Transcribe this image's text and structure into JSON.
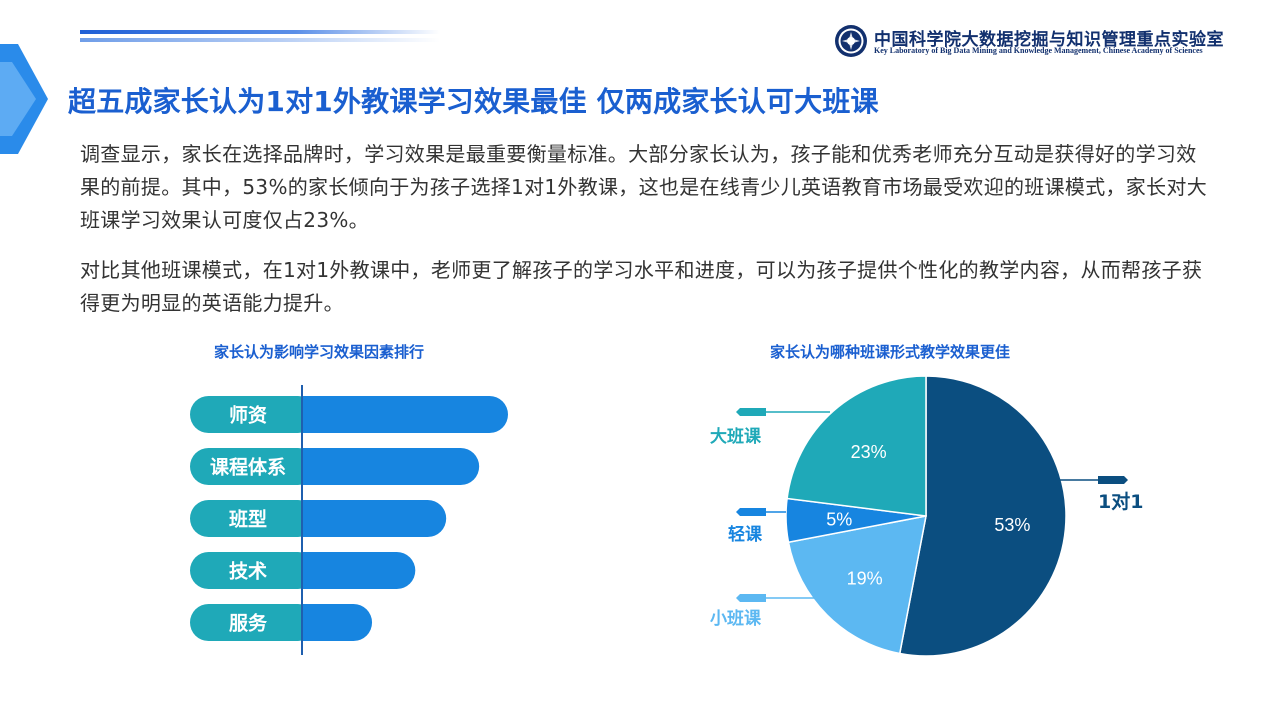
{
  "header": {
    "org_name_cn": "中国科学院大数据挖掘与知识管理重点实验室",
    "org_name_en": "Key Laboratory of Big Data Mining and Knowledge Management, Chinese Academy of Sciences",
    "title": "超五成家长认为1对1外教课学习效果最佳 仅两成家长认可大班课"
  },
  "body": {
    "paragraph1": "调查显示，家长在选择品牌时，学习效果是最重要衡量标准。大部分家长认为，孩子能和优秀老师充分互动是获得好的学习效果的前提。其中，53%的家长倾向于为孩子选择1对1外教课，这也是在线青少儿英语教育市场最受欢迎的班课模式，家长对大班课学习效果认可度仅占23%。",
    "paragraph2": "对比其他班课模式，在1对1外教课中，老师更了解孩子的学习水平和进度，可以为孩子提供个性化的教学内容，从而帮孩子获得更为明显的英语能力提升。"
  },
  "colors": {
    "title_blue": "#1a5fd0",
    "teal": "#1fa9b8",
    "blue": "#1785e0",
    "navy": "#0b4e80",
    "light_blue": "#5cb8f2"
  },
  "chart_data": [
    {
      "type": "bar",
      "orientation": "horizontal",
      "title": "家长认为影响学习效果因素排行",
      "categories": [
        "师资",
        "课程体系",
        "班型",
        "技术",
        "服务"
      ],
      "values": [
        100,
        86,
        70,
        55,
        34
      ],
      "xlabel": "",
      "ylabel": "",
      "grid": false,
      "legend": false
    },
    {
      "type": "pie",
      "title": "家长认为哪种班课形式教学效果更佳",
      "slices": [
        {
          "label": "1对1",
          "value": 53,
          "value_label": "53%",
          "color": "#0b4e80"
        },
        {
          "label": "小班课",
          "value": 19,
          "value_label": "19%",
          "color": "#5cb8f2"
        },
        {
          "label": "轻课",
          "value": 5,
          "value_label": "5%",
          "color": "#1785e0"
        },
        {
          "label": "大班课",
          "value": 23,
          "value_label": "23%",
          "color": "#1fa9b8"
        }
      ],
      "legend": false
    }
  ]
}
